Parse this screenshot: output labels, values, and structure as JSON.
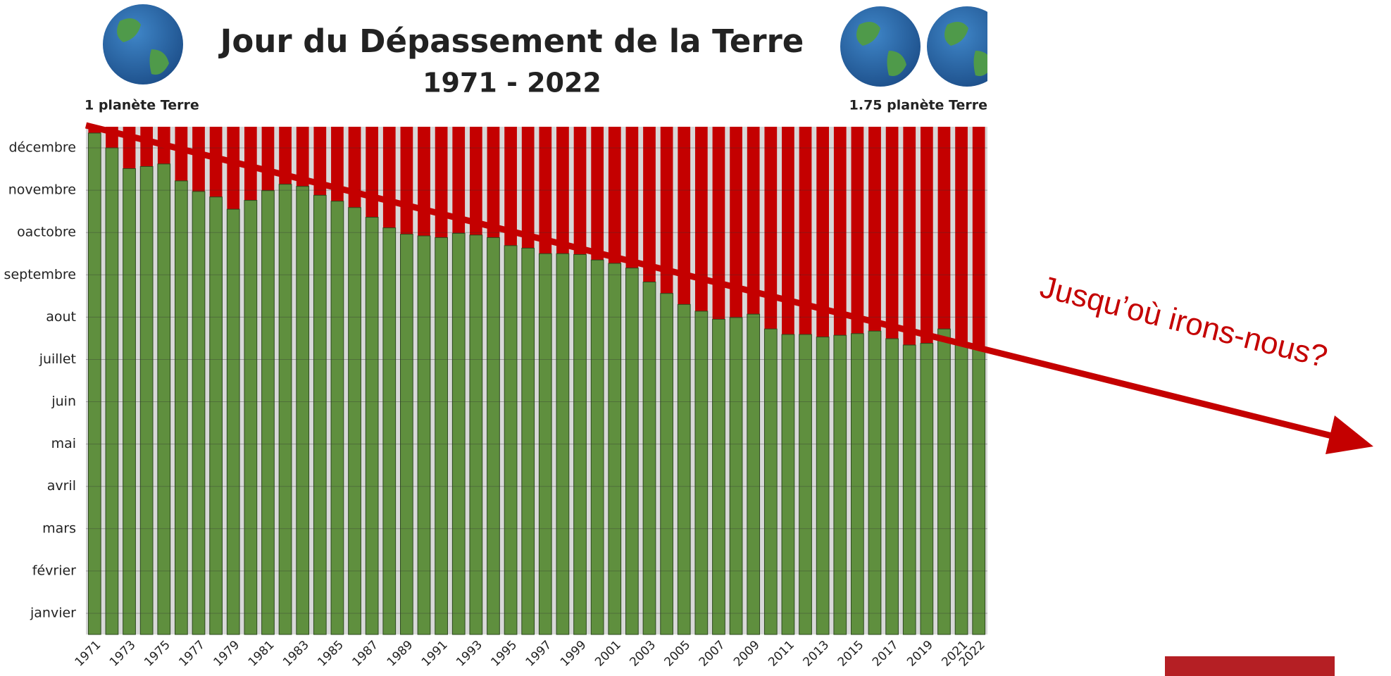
{
  "chart_data": {
    "type": "bar",
    "title": "Jour du Dépassement de la Terre",
    "subtitle": "1971 - 2022",
    "left_label": "1 planète Terre",
    "right_label": "1.75 planète Terre",
    "annotation": "Jusqu’où irons-nous?",
    "categories": [
      "1971",
      null,
      "1973",
      null,
      "1975",
      null,
      "1977",
      null,
      "1979",
      null,
      "1981",
      null,
      "1983",
      null,
      "1985",
      null,
      "1987",
      null,
      "1989",
      null,
      "1991",
      null,
      "1993",
      null,
      "1995",
      null,
      "1997",
      null,
      "1999",
      null,
      "2001",
      null,
      "2003",
      null,
      "2005",
      null,
      "2007",
      null,
      "2009",
      null,
      "2011",
      null,
      "2013",
      null,
      "2015",
      null,
      "2017",
      null,
      "2019",
      null,
      "2021",
      "2022"
    ],
    "values": [
      11.85,
      11.5,
      11.01,
      11.06,
      11.12,
      10.72,
      10.47,
      10.34,
      10.05,
      10.26,
      10.49,
      10.64,
      10.59,
      10.38,
      10.24,
      10.09,
      9.86,
      9.61,
      9.46,
      9.42,
      9.38,
      9.48,
      9.44,
      9.38,
      9.19,
      9.13,
      9.0,
      9.0,
      8.98,
      8.85,
      8.77,
      8.66,
      8.33,
      8.06,
      7.8,
      7.64,
      7.45,
      7.49,
      7.57,
      7.22,
      7.09,
      7.09,
      7.03,
      7.07,
      7.11,
      7.17,
      6.99,
      6.84,
      6.88,
      7.22,
      6.84,
      6.8
    ],
    "color": "#5f8f3e",
    "overshoot_color": "#c40000",
    "ylim": [
      0,
      12
    ],
    "yticks": [
      {
        "value": 0.5,
        "label": "janvier"
      },
      {
        "value": 1.5,
        "label": "février"
      },
      {
        "value": 2.5,
        "label": "mars"
      },
      {
        "value": 3.5,
        "label": "avril"
      },
      {
        "value": 4.5,
        "label": "mai"
      },
      {
        "value": 5.5,
        "label": "juin"
      },
      {
        "value": 6.5,
        "label": "juillet"
      },
      {
        "value": 7.5,
        "label": "aout"
      },
      {
        "value": 8.5,
        "label": "septembre"
      },
      {
        "value": 9.5,
        "label": "oactobre"
      },
      {
        "value": 10.5,
        "label": "novembre"
      },
      {
        "value": 11.5,
        "label": "décembre"
      }
    ],
    "grid": true
  }
}
